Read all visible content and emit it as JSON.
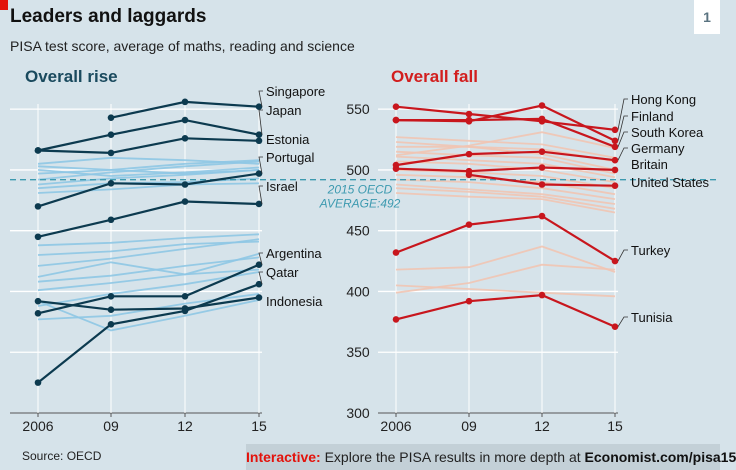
{
  "title": "Leaders and laggards",
  "subtitle": "PISA test score, average of maths, reading and science",
  "badge": "1",
  "source": "Source: OECD",
  "interactive": {
    "lead": "Interactive:",
    "text": " Explore the PISA results in more depth at ",
    "link": "Economist.com/pisa15"
  },
  "colors": {
    "rise_main": "#0c3a4f",
    "rise_faint": "#8ec6e4",
    "fall_main": "#c8161d",
    "fall_faint": "#f1c4b3",
    "average_line": "#3d9ab0",
    "panel_title_rise": "#1a4a5e",
    "panel_title_fall": "#d21e1e"
  },
  "chart_data": {
    "type": "line",
    "x": [
      "2006",
      "09",
      "12",
      "15"
    ],
    "ylim": [
      300,
      560
    ],
    "yticks": [
      300,
      350,
      400,
      450,
      500,
      550
    ],
    "average": {
      "value": 492,
      "label_line1": "2015 OECD",
      "label_line2": "AVERAGE:492"
    },
    "panels": [
      {
        "title": "Overall rise",
        "highlighted": [
          {
            "name": "Singapore",
            "values": [
              null,
              543,
              556,
              552
            ]
          },
          {
            "name": "Japan",
            "values": [
              516,
              529,
              541,
              529
            ]
          },
          {
            "name": "Estonia",
            "values": [
              516,
              514,
              526,
              524
            ]
          },
          {
            "name": "Portugal",
            "values": [
              470,
              489,
              488,
              497
            ]
          },
          {
            "name": "Israel",
            "values": [
              445,
              459,
              474,
              472
            ]
          },
          {
            "name": "Argentina",
            "values": [
              382,
              396,
              396,
              422
            ]
          },
          {
            "name": "Qatar",
            "values": [
              325,
              373,
              384,
              406
            ]
          },
          {
            "name": "Indonesia",
            "values": [
              392,
              385,
              386,
              395
            ]
          }
        ],
        "others": [
          [
            505,
            510,
            508,
            505
          ],
          [
            500,
            495,
            498,
            502
          ],
          [
            497,
            500,
            505,
            508
          ],
          [
            492,
            498,
            503,
            507
          ],
          [
            488,
            493,
            496,
            500
          ],
          [
            485,
            489,
            490,
            493
          ],
          [
            481,
            484,
            488,
            489
          ],
          [
            503,
            500,
            497,
            500
          ],
          [
            438,
            440,
            444,
            447
          ],
          [
            430,
            433,
            439,
            441
          ],
          [
            421,
            427,
            435,
            443
          ],
          [
            412,
            424,
            414,
            431
          ],
          [
            408,
            413,
            421,
            428
          ],
          [
            401,
            407,
            414,
            418
          ],
          [
            388,
            398,
            406,
            416
          ],
          [
            377,
            380,
            390,
            398
          ],
          [
            392,
            368,
            380,
            393
          ]
        ]
      },
      {
        "title": "Overall fall",
        "highlighted": [
          {
            "name": "Hong Kong",
            "values": [
              552,
              546,
              540,
              533
            ]
          },
          {
            "name": "Finland",
            "values": [
              541,
              540,
              553,
              524
            ]
          },
          {
            "name": "South Korea",
            "values": [
              541,
              541,
              542,
              519
            ]
          },
          {
            "name": "Germany",
            "values": [
              504,
              513,
              515,
              508
            ]
          },
          {
            "name": "Britain",
            "values": [
              501,
              499,
              502,
              500
            ]
          },
          {
            "name": "United States",
            "values": [
              null,
              496,
              488,
              487
            ]
          },
          {
            "name": "Turkey",
            "values": [
              432,
              455,
              462,
              425
            ]
          },
          {
            "name": "Tunisia",
            "values": [
              377,
              392,
              397,
              371
            ]
          }
        ],
        "others": [
          [
            527,
            524,
            521,
            510
          ],
          [
            523,
            519,
            517,
            507
          ],
          [
            519,
            519,
            513,
            500
          ],
          [
            515,
            512,
            510,
            497
          ],
          [
            511,
            508,
            505,
            494
          ],
          [
            507,
            505,
            500,
            490
          ],
          [
            500,
            498,
            495,
            485
          ],
          [
            496,
            494,
            490,
            480
          ],
          [
            492,
            490,
            485,
            476
          ],
          [
            488,
            484,
            480,
            472
          ],
          [
            485,
            482,
            478,
            468
          ],
          [
            481,
            478,
            476,
            465
          ],
          [
            512,
            520,
            531,
            518
          ],
          [
            418,
            420,
            437,
            416
          ],
          [
            399,
            407,
            422,
            418
          ],
          [
            405,
            402,
            399,
            396
          ]
        ]
      }
    ]
  }
}
